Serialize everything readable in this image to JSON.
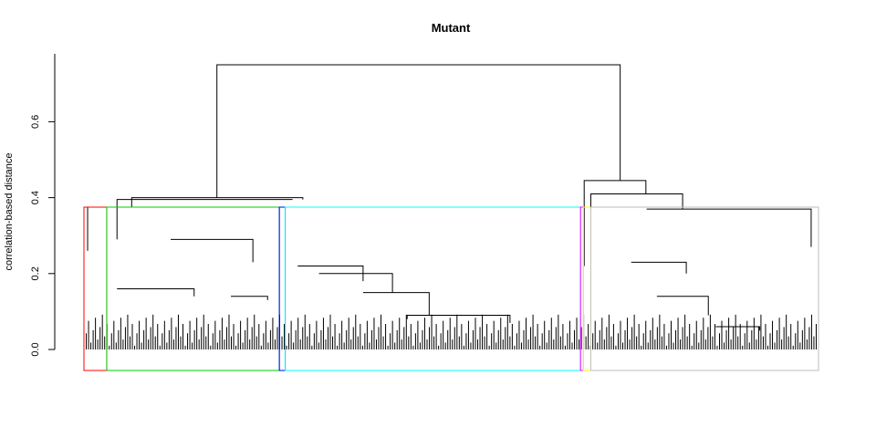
{
  "chart_data": {
    "type": "dendrogram",
    "title": "Mutant",
    "xlabel": "",
    "ylabel": "correlation-based distance",
    "ylim": [
      0,
      0.75
    ],
    "yticks": [
      {
        "value": 0.0,
        "label": "0.0"
      },
      {
        "value": 0.2,
        "label": "0.2"
      },
      {
        "value": 0.4,
        "label": "0.4"
      },
      {
        "value": 0.6,
        "label": "0.6"
      }
    ],
    "root_merge_height": 0.75,
    "cut_height": 0.375,
    "major_merges": [
      {
        "name": "left-group",
        "height": 0.4
      },
      {
        "name": "right-group",
        "height": 0.445
      },
      {
        "name": "right-subgroup",
        "height": 0.41
      },
      {
        "name": "cyan-top",
        "height": 0.395
      },
      {
        "name": "red-top",
        "height": 0.375
      },
      {
        "name": "gray-top",
        "height": 0.37
      },
      {
        "name": "green-mid",
        "height": 0.29
      },
      {
        "name": "cyan-mid",
        "height": 0.22
      }
    ],
    "clusters": [
      {
        "color": "#ff0000",
        "x_start": 0.0,
        "x_end": 0.031
      },
      {
        "color": "#00cd00",
        "x_start": 0.031,
        "x_end": 0.266
      },
      {
        "color": "#0000ff",
        "x_start": 0.266,
        "x_end": 0.274
      },
      {
        "color": "#00ffff",
        "x_start": 0.274,
        "x_end": 0.676
      },
      {
        "color": "#ff00ff",
        "x_start": 0.676,
        "x_end": 0.68
      },
      {
        "color": "#ffff00",
        "x_start": 0.68,
        "x_end": 0.69
      },
      {
        "color": "#bebebe",
        "x_start": 0.69,
        "x_end": 1.0
      }
    ]
  }
}
